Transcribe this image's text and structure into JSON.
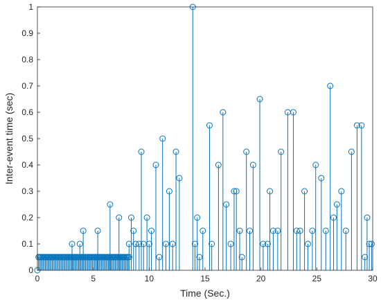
{
  "chart_data": {
    "type": "stem",
    "title": "",
    "xlabel": "Time (Sec.)",
    "ylabel": "Inter-event time (sec)",
    "xlim": [
      0,
      30
    ],
    "ylim": [
      0,
      1
    ],
    "xticks": [
      0,
      5,
      10,
      15,
      20,
      25,
      30
    ],
    "yticks": [
      0,
      0.1,
      0.2,
      0.3,
      0.4,
      0.5,
      0.6,
      0.7,
      0.8,
      0.9,
      1
    ],
    "grid": false,
    "box": true,
    "color": "#0072BD",
    "dense_cluster": {
      "x_start": 0.1,
      "x_end": 8.2,
      "y": 0.05,
      "count": 80
    },
    "x": [
      0.0,
      3.1,
      3.8,
      4.1,
      5.4,
      6.5,
      7.3,
      8.2,
      8.4,
      8.6,
      8.8,
      9.1,
      9.3,
      9.5,
      9.8,
      10.0,
      10.2,
      10.6,
      10.9,
      11.2,
      11.5,
      11.8,
      12.1,
      12.4,
      12.7,
      13.9,
      14.1,
      14.3,
      14.5,
      14.8,
      15.4,
      15.6,
      16.2,
      16.6,
      16.9,
      17.3,
      17.6,
      17.8,
      18.1,
      18.3,
      18.7,
      19.0,
      19.3,
      19.9,
      20.2,
      20.6,
      20.8,
      21.1,
      21.5,
      21.8,
      22.4,
      22.9,
      23.2,
      23.5,
      23.9,
      24.2,
      24.6,
      24.9,
      25.4,
      25.8,
      26.2,
      26.5,
      26.8,
      27.2,
      27.6,
      28.1,
      28.6,
      29.0,
      29.3,
      29.5,
      29.7,
      29.9
    ],
    "values": [
      0.0,
      0.1,
      0.1,
      0.15,
      0.15,
      0.25,
      0.2,
      0.1,
      0.2,
      0.15,
      0.1,
      0.1,
      0.45,
      0.1,
      0.2,
      0.1,
      0.15,
      0.4,
      0.05,
      0.5,
      0.1,
      0.3,
      0.1,
      0.45,
      0.35,
      1.0,
      0.1,
      0.2,
      0.05,
      0.15,
      0.55,
      0.1,
      0.4,
      0.6,
      0.25,
      0.1,
      0.3,
      0.3,
      0.15,
      0.05,
      0.45,
      0.15,
      0.4,
      0.65,
      0.1,
      0.1,
      0.3,
      0.15,
      0.15,
      0.45,
      0.6,
      0.6,
      0.15,
      0.15,
      0.3,
      0.1,
      0.15,
      0.4,
      0.35,
      0.15,
      0.7,
      0.2,
      0.25,
      0.3,
      0.15,
      0.45,
      0.55,
      0.55,
      0.05,
      0.2,
      0.1,
      0.1
    ]
  }
}
